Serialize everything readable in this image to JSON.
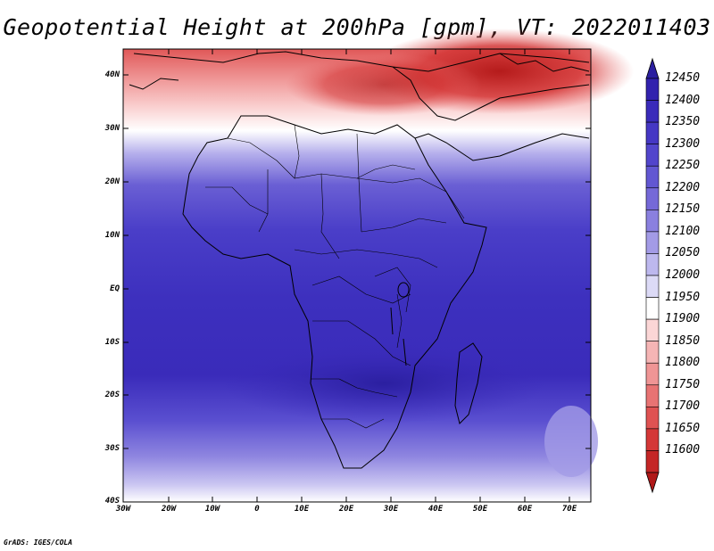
{
  "title": "Geopotential Height at 200hPa [gpm], VT: 2022011403",
  "credit": "GrADS: IGES/COLA",
  "map": {
    "region": "Africa",
    "variable": "Geopotential Height",
    "level": "200hPa",
    "units": "gpm",
    "valid_time": "2022011403",
    "lat_labels": [
      "40N",
      "30N",
      "20N",
      "10N",
      "EQ",
      "10S",
      "20S",
      "30S",
      "40S"
    ],
    "lon_labels": [
      "30W",
      "20W",
      "10W",
      "0",
      "10E",
      "20E",
      "30E",
      "40E",
      "50E",
      "60E",
      "70E"
    ]
  },
  "colorbar": {
    "levels": [
      "12450",
      "12400",
      "12350",
      "12300",
      "12250",
      "12200",
      "12150",
      "12100",
      "12050",
      "12000",
      "11950",
      "11900",
      "11850",
      "11800",
      "11750",
      "11700",
      "11650",
      "11600"
    ],
    "colors": [
      "#2b1fa0",
      "#3222ae",
      "#3a2bba",
      "#4537c4",
      "#5245cc",
      "#6257d2",
      "#7569d8",
      "#8a80df",
      "#a39be6",
      "#bdb8ee",
      "#dcdaf6",
      "#ffffff",
      "#fbd6d6",
      "#f5b5b5",
      "#ef9595",
      "#e87373",
      "#df5252",
      "#d43737",
      "#c42626",
      "#b01818"
    ]
  }
}
